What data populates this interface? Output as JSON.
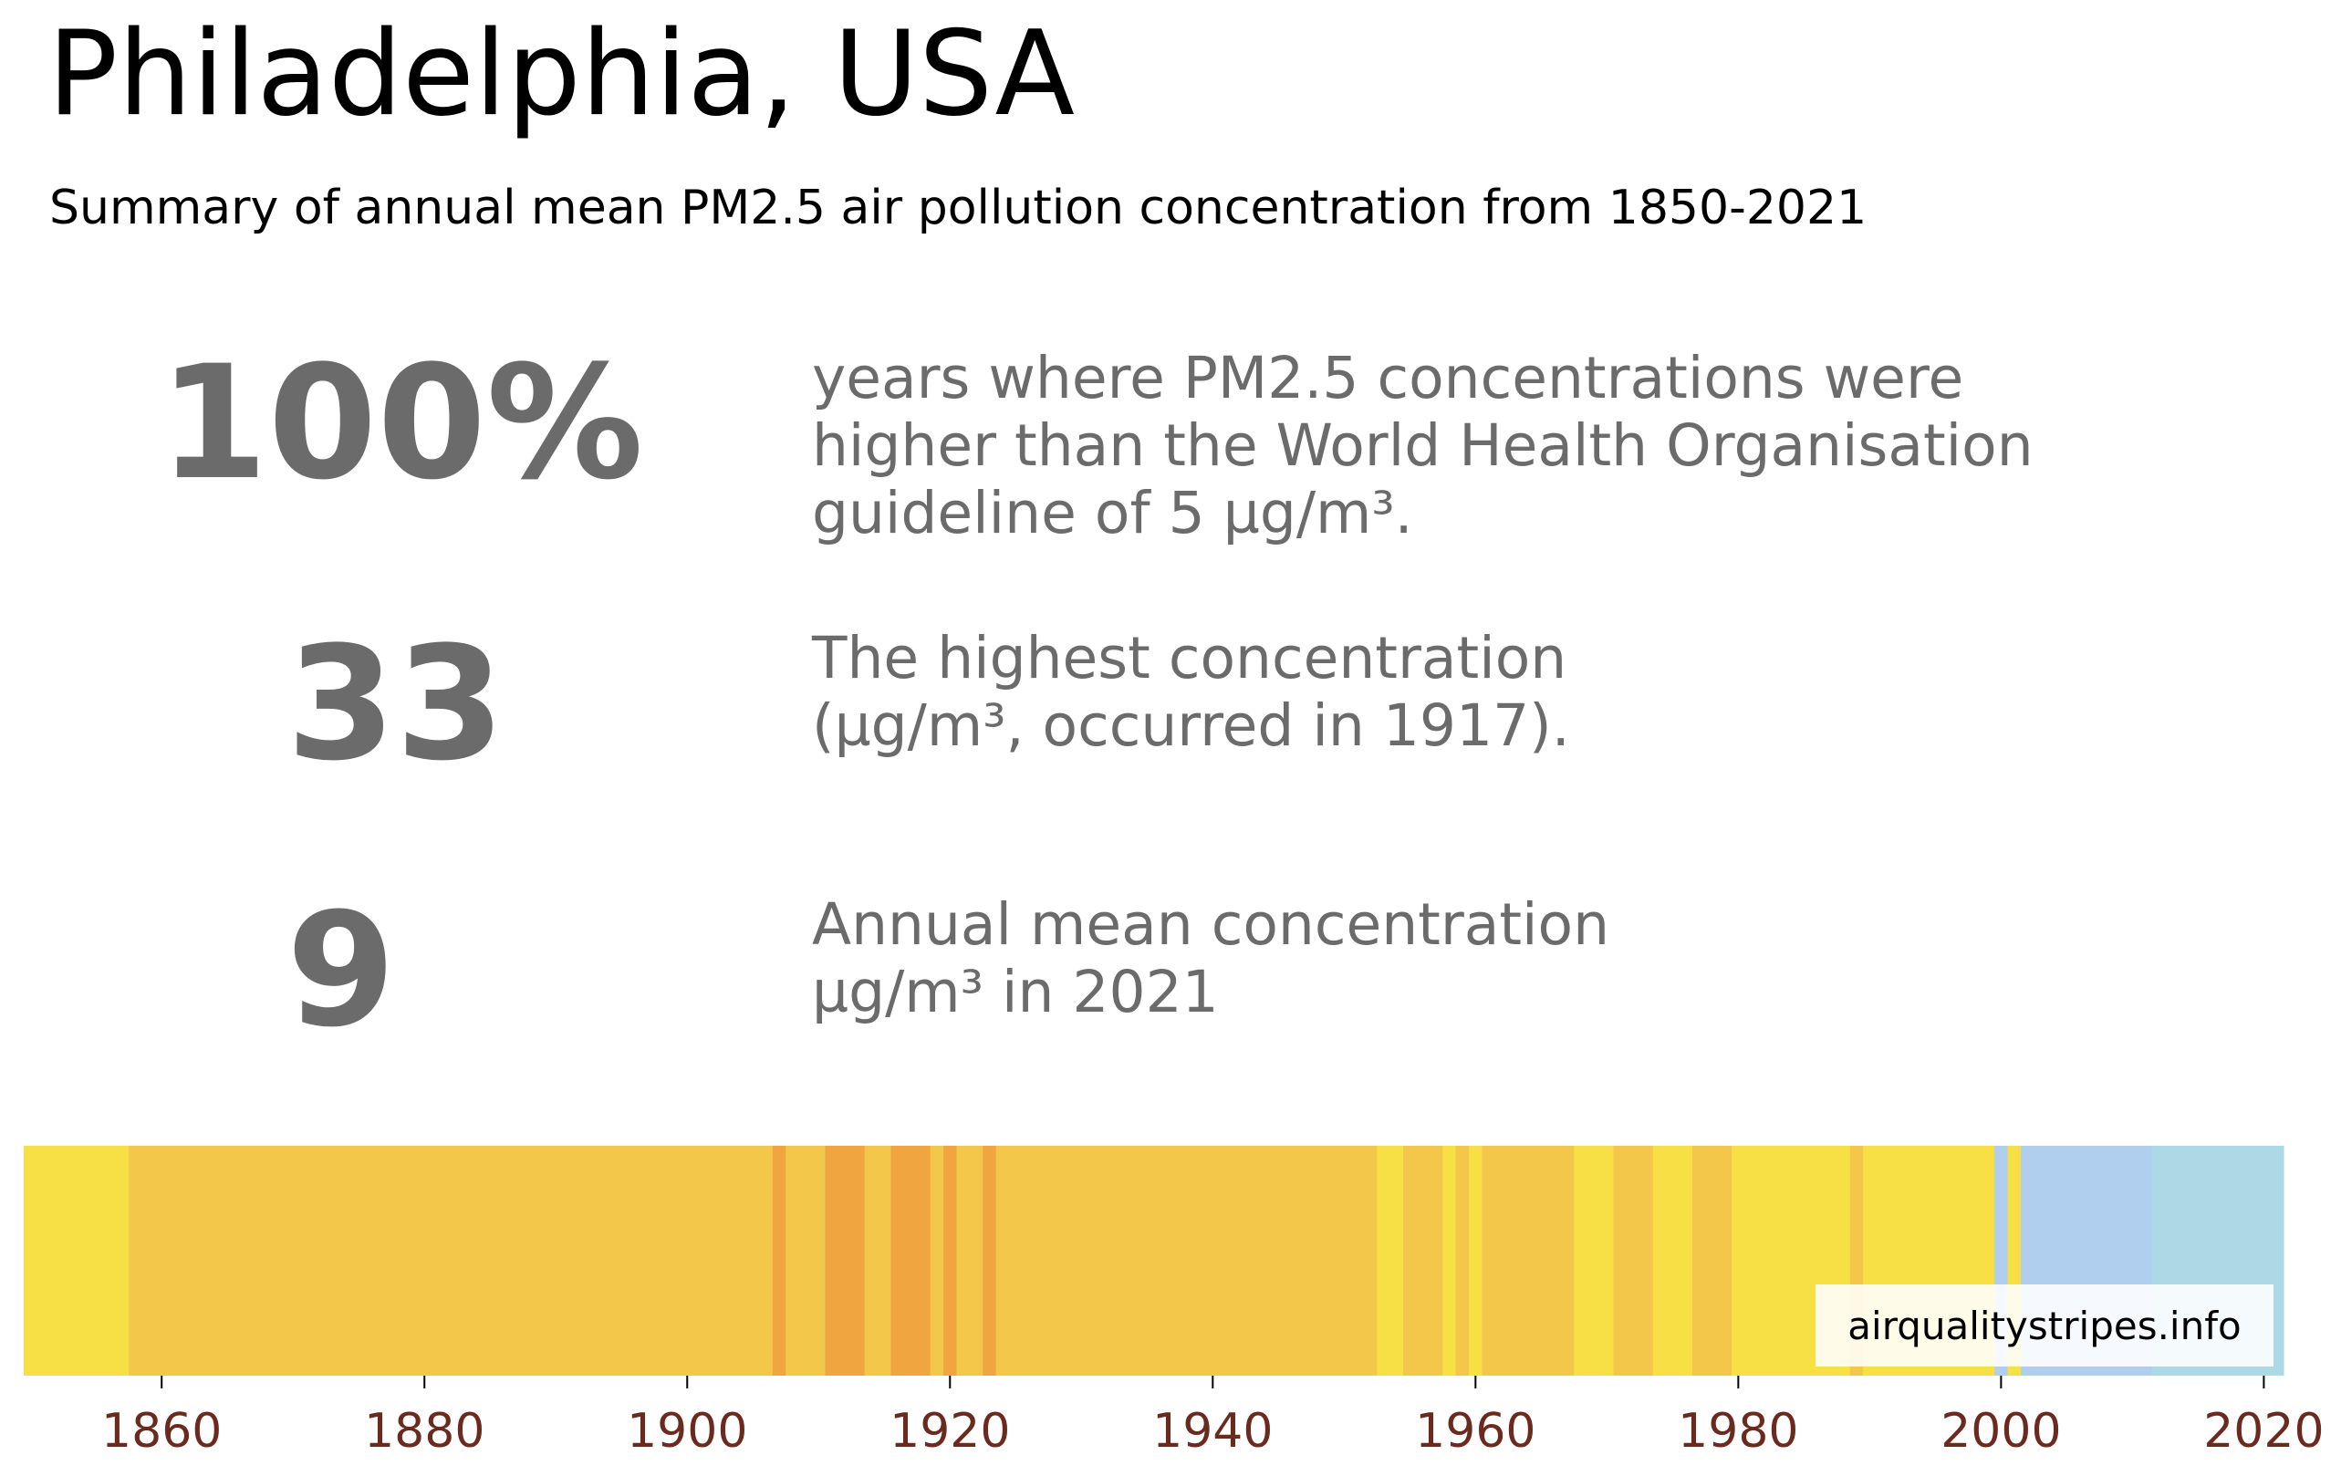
{
  "header": {
    "title": "Philadelphia, USA",
    "subtitle": "Summary of annual mean PM2.5 air pollution concentration from 1850-2021"
  },
  "stats": [
    {
      "value": "100%",
      "lines": [
        "years where PM2.5 concentrations were",
        "higher than the World Health Organisation",
        "guideline of 5 µg/m³."
      ]
    },
    {
      "value": "33",
      "lines": [
        "The highest concentration",
        "(µg/m³, occurred in 1917)."
      ]
    },
    {
      "value": "9",
      "lines": [
        "Annual mean concentration",
        "µg/m³ in 2021"
      ]
    }
  ],
  "watermark": "airqualitystripes.info",
  "colors": {
    "text_gray": "#6b6b6b",
    "tick_label": "#6b2a1e",
    "yellow": "#f7df46",
    "light_orange": "#f2c74a",
    "orange": "#f0a540",
    "light_blue": "#add8e6",
    "pale_blue": "#b0cfee"
  },
  "chart_data": {
    "type": "heatmap",
    "x_range": [
      1850,
      2021
    ],
    "x_ticks": [
      "1860",
      "1880",
      "1900",
      "1920",
      "1940",
      "1960",
      "1980",
      "2000",
      "2020"
    ],
    "grid": false,
    "segments": [
      {
        "start": 1850,
        "end": 1858,
        "color": "#f7df46"
      },
      {
        "start": 1858,
        "end": 1907,
        "color": "#f2c74a"
      },
      {
        "start": 1907,
        "end": 1908,
        "color": "#f0a540"
      },
      {
        "start": 1908,
        "end": 1911,
        "color": "#f2c74a"
      },
      {
        "start": 1911,
        "end": 1914,
        "color": "#f0a540"
      },
      {
        "start": 1914,
        "end": 1916,
        "color": "#f2c74a"
      },
      {
        "start": 1916,
        "end": 1919,
        "color": "#f0a540"
      },
      {
        "start": 1919,
        "end": 1920,
        "color": "#f2c74a"
      },
      {
        "start": 1920,
        "end": 1921,
        "color": "#f0a540"
      },
      {
        "start": 1921,
        "end": 1923,
        "color": "#f2c74a"
      },
      {
        "start": 1923,
        "end": 1924,
        "color": "#f0a540"
      },
      {
        "start": 1924,
        "end": 1953,
        "color": "#f2c74a"
      },
      {
        "start": 1953,
        "end": 1955,
        "color": "#f7df46"
      },
      {
        "start": 1955,
        "end": 1958,
        "color": "#f2c74a"
      },
      {
        "start": 1958,
        "end": 1959,
        "color": "#f7df46"
      },
      {
        "start": 1959,
        "end": 1960,
        "color": "#f2c74a"
      },
      {
        "start": 1960,
        "end": 1961,
        "color": "#f7df46"
      },
      {
        "start": 1961,
        "end": 1968,
        "color": "#f2c74a"
      },
      {
        "start": 1968,
        "end": 1971,
        "color": "#f7df46"
      },
      {
        "start": 1971,
        "end": 1974,
        "color": "#f2c74a"
      },
      {
        "start": 1974,
        "end": 1977,
        "color": "#f7df46"
      },
      {
        "start": 1977,
        "end": 1980,
        "color": "#f2c74a"
      },
      {
        "start": 1980,
        "end": 1989,
        "color": "#f7df46"
      },
      {
        "start": 1989,
        "end": 1990,
        "color": "#f2c74a"
      },
      {
        "start": 1990,
        "end": 2000,
        "color": "#f7df46"
      },
      {
        "start": 2000,
        "end": 2001,
        "color": "#b0cfee"
      },
      {
        "start": 2001,
        "end": 2002,
        "color": "#f7df46"
      },
      {
        "start": 2002,
        "end": 2012,
        "color": "#b0cfee"
      },
      {
        "start": 2012,
        "end": 2022,
        "color": "#add8e6"
      }
    ]
  }
}
